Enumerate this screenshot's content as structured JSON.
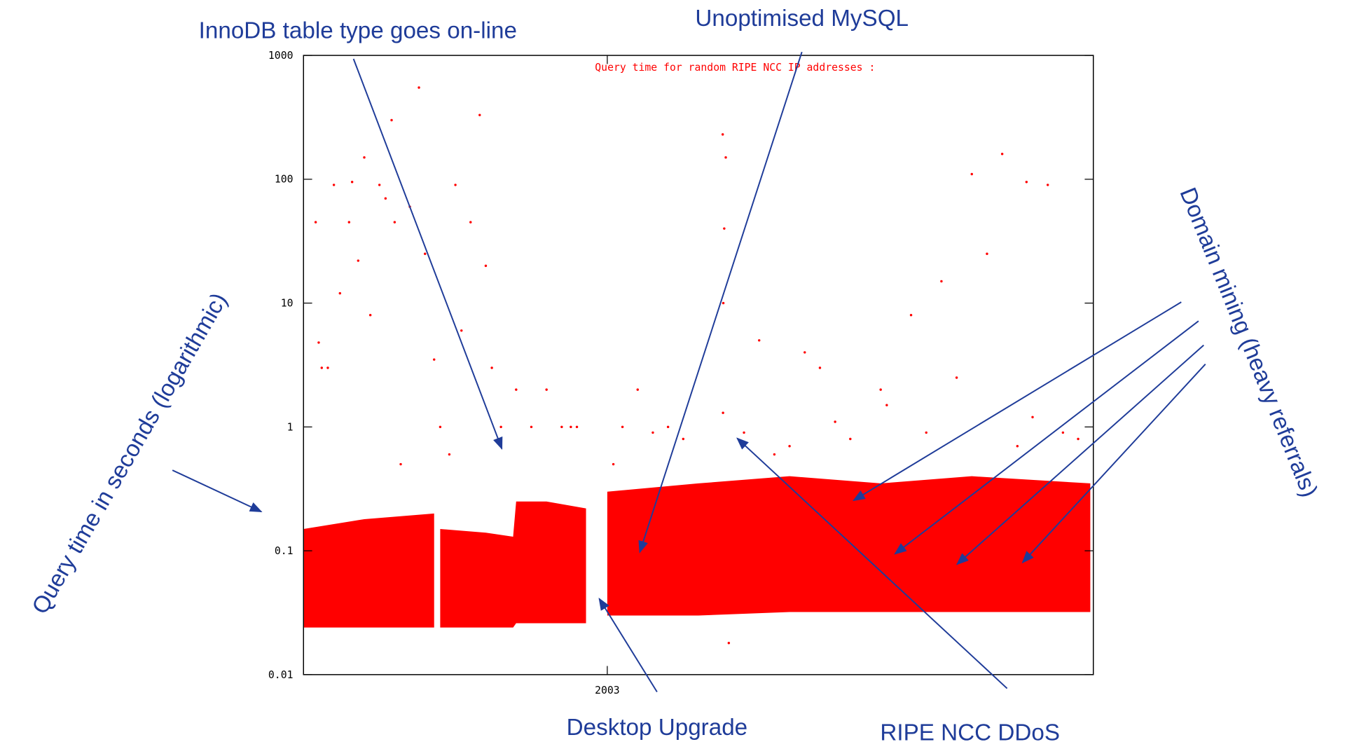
{
  "chart_data": {
    "type": "scatter",
    "subtitle": "Query time for random RIPE NCC IP addresses   :",
    "ylabel": "Query time in seconds (logarithmic)",
    "annotations": [
      "InnoDB table type goes on-line",
      "Unoptimised MySQL",
      "Desktop Upgrade",
      "RIPE NCC DDoS",
      "Domain mining (heavy referrals)"
    ],
    "log_y": true,
    "color": "#ff0000",
    "xlim": [
      2002.0,
      2004.6
    ],
    "xticks": [
      2003
    ],
    "ylim": [
      0.01,
      1000
    ],
    "yticks": [
      0.01,
      0.1,
      1,
      10,
      100,
      1000
    ],
    "band": {
      "x": [
        2002.0,
        2002.2,
        2002.43,
        2002.44,
        2002.45,
        2002.6,
        2002.69,
        2002.7,
        2002.8,
        2002.93,
        2002.96,
        2003.0,
        2003.3,
        2003.6,
        2003.9,
        2004.2,
        2004.59
      ],
      "low": [
        0.024,
        0.024,
        0.024,
        null,
        0.024,
        0.024,
        0.024,
        0.026,
        0.026,
        0.026,
        null,
        0.03,
        0.03,
        0.032,
        0.032,
        0.032,
        0.032
      ],
      "high": [
        0.15,
        0.18,
        0.2,
        null,
        0.15,
        0.14,
        0.13,
        0.25,
        0.25,
        0.22,
        null,
        0.3,
        0.35,
        0.4,
        0.35,
        0.4,
        0.35
      ]
    },
    "x": [
      2002.05,
      2002.08,
      2002.1,
      2002.15,
      2002.2,
      2002.25,
      2002.3,
      2002.35,
      2002.4,
      2002.43,
      2002.45,
      2002.5,
      2002.55,
      2002.58,
      2002.6,
      2002.65,
      2002.7,
      2002.75,
      2002.8,
      2002.85,
      2002.88,
      2002.9,
      2003.05,
      2003.1,
      2003.2,
      2002.38,
      2002.29,
      2003.38,
      2003.39,
      2003.385,
      2003.382,
      2003.381,
      2003.5,
      2003.7,
      2003.9,
      2004.0,
      2004.3,
      2004.2,
      2004.38,
      2004.45,
      2004.25,
      2004.1,
      2003.92,
      2004.4,
      2003.4,
      2002.12,
      2002.22,
      2002.52,
      2002.62,
      2003.8,
      2004.5,
      2003.02,
      2002.32,
      2002.48,
      2003.6,
      2002.04,
      2002.06,
      2002.18,
      2002.27,
      2002.16,
      2003.15,
      2003.25,
      2003.55,
      2003.75,
      2004.05,
      2004.15,
      2004.35,
      2004.55,
      2003.45,
      2003.65
    ],
    "values": [
      4.8,
      3,
      90,
      45,
      150,
      90,
      45,
      60,
      25,
      3.5,
      1,
      90,
      45,
      330,
      20,
      1,
      2,
      1,
      2,
      1,
      1,
      1,
      1,
      2,
      1,
      550,
      300,
      230,
      150,
      40,
      10,
      1.3,
      5,
      3,
      2,
      8,
      160,
      110,
      95,
      90,
      25,
      15,
      1.5,
      1.2,
      0.018,
      12,
      8,
      6,
      3,
      0.8,
      0.9,
      0.5,
      0.5,
      0.6,
      0.7,
      45,
      3,
      22,
      70,
      95,
      0.9,
      0.8,
      0.6,
      1.1,
      0.9,
      2.5,
      0.7,
      0.8,
      0.9,
      4
    ]
  }
}
